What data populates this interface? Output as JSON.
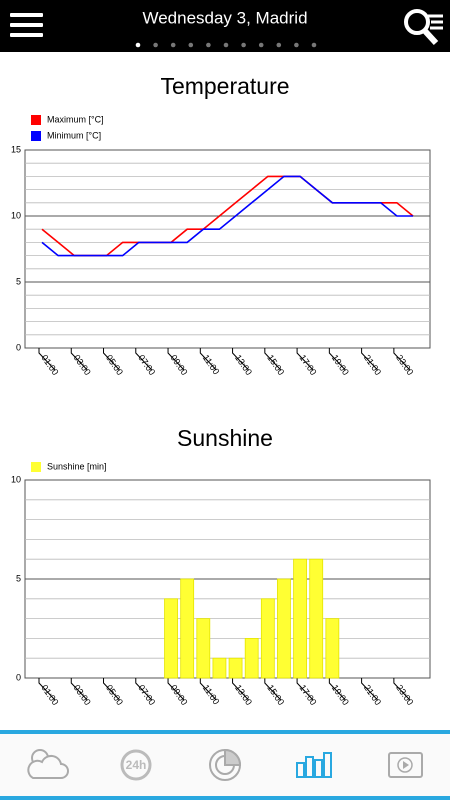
{
  "header": {
    "title": "Wednesday 3, Madrid"
  },
  "nav": {
    "badge": "24h"
  },
  "chart_data": [
    {
      "type": "line",
      "title": "Temperature",
      "categories": [
        "01:00",
        null,
        "03:00",
        null,
        "05:00",
        null,
        "07:00",
        null,
        "09:00",
        null,
        "11:00",
        null,
        "13:00",
        null,
        "15:00",
        null,
        "17:00",
        null,
        "19:00",
        null,
        "21:00",
        null,
        "23:00",
        null
      ],
      "series": [
        {
          "name": "Maximum [°C]",
          "color": "#ff0000",
          "values": [
            9,
            8,
            7,
            7,
            7,
            8,
            8,
            8,
            8,
            9,
            9,
            10,
            11,
            12,
            13,
            13,
            13,
            12,
            11,
            11,
            11,
            11,
            11,
            10
          ]
        },
        {
          "name": "Minimum [°C]",
          "color": "#0000ff",
          "values": [
            8,
            7,
            7,
            7,
            7,
            7,
            8,
            8,
            8,
            8,
            9,
            9,
            10,
            11,
            12,
            13,
            13,
            12,
            11,
            11,
            11,
            11,
            10,
            10
          ]
        }
      ],
      "ylim": [
        0,
        15
      ],
      "yticks": [
        0,
        5,
        10,
        15
      ],
      "grid": true,
      "minor_grid_step": 1
    },
    {
      "type": "bar",
      "title": "Sunshine",
      "categories": [
        "01:00",
        null,
        "03:00",
        null,
        "05:00",
        null,
        "07:00",
        null,
        "09:00",
        null,
        "11:00",
        null,
        "13:00",
        null,
        "15:00",
        null,
        "17:00",
        null,
        "19:00",
        null,
        "21:00",
        null,
        "23:00",
        null
      ],
      "series": [
        {
          "name": "Sunshine [min]",
          "color": "#ffff33",
          "values": [
            0,
            0,
            0,
            0,
            0,
            0,
            0,
            0,
            4,
            5,
            3,
            1,
            1,
            2,
            4,
            5,
            6,
            6,
            3,
            0,
            0,
            0,
            0,
            0
          ]
        }
      ],
      "ylim": [
        0,
        10
      ],
      "yticks": [
        0,
        5,
        10
      ],
      "grid": true,
      "minor_grid_step": 1
    }
  ]
}
